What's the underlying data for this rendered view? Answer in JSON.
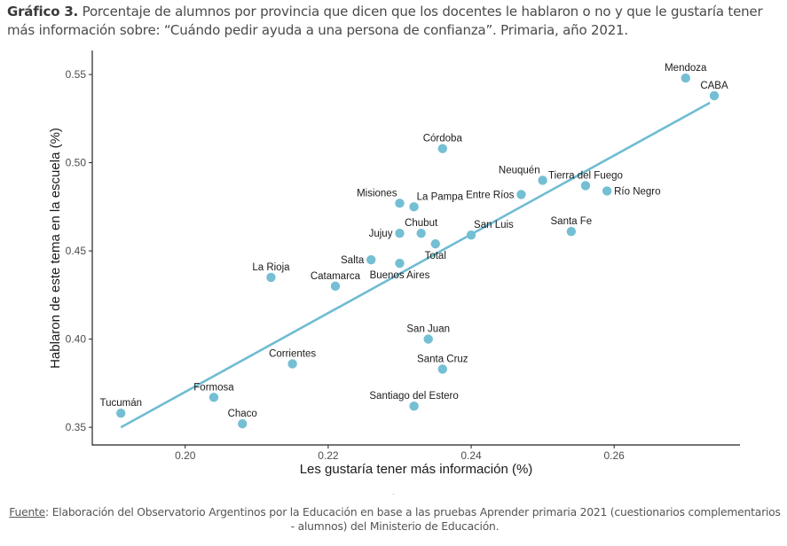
{
  "title": {
    "prefix": "Gráfico 3.",
    "text": " Porcentaje de alumnos por provincia que dicen que los docentes le hablaron o no y que le gustaría tener más información sobre: “Cuándo pedir ayuda a una persona de confianza”. Primaria, año 2021."
  },
  "source": {
    "label": "Fuente",
    "text": ":  Elaboración del Observatorio Argentinos por la Educación en base a las pruebas Aprender primaria 2021 (cuestionarios complementarios - alumnos) del Ministerio de Educación."
  },
  "colors": {
    "point": "#74bfd3",
    "line": "#6fbcd2",
    "axis": "#222222"
  },
  "chart_data": {
    "type": "scatter",
    "title": "Gráfico 3. Porcentaje de alumnos por provincia que dicen que los docentes le hablaron o no y que le gustaría tener más información sobre: “Cuándo pedir ayuda a una persona de confianza”. Primaria, año 2021.",
    "xlabel": "Les gustaría tener más información (%)",
    "ylabel": "Hablaron de este tema en la escuela (%)",
    "xlim": [
      0.187,
      0.2776
    ],
    "ylim": [
      0.34,
      0.5636
    ],
    "xticks": [
      0.2,
      0.22,
      0.24,
      0.26
    ],
    "xtick_labels": [
      "0.20",
      "0.22",
      "0.24",
      "0.26"
    ],
    "yticks": [
      0.35,
      0.4,
      0.45,
      0.5,
      0.55
    ],
    "ytick_labels": [
      "0.35",
      "0.40",
      "0.45",
      "0.50",
      "0.55"
    ],
    "grid": false,
    "points": [
      {
        "label": "Mendoza",
        "x": 0.27,
        "y": 0.548
      },
      {
        "label": "CABA",
        "x": 0.274,
        "y": 0.538
      },
      {
        "label": "Córdoba",
        "x": 0.236,
        "y": 0.508
      },
      {
        "label": "Neuquén",
        "x": 0.25,
        "y": 0.49
      },
      {
        "label": "Tierra del Fuego",
        "x": 0.256,
        "y": 0.487
      },
      {
        "label": "Río Negro",
        "x": 0.259,
        "y": 0.484
      },
      {
        "label": "Entre Ríos",
        "x": 0.247,
        "y": 0.482
      },
      {
        "label": "Misiones",
        "x": 0.23,
        "y": 0.477
      },
      {
        "label": "La Pampa",
        "x": 0.232,
        "y": 0.475
      },
      {
        "label": "Jujuy",
        "x": 0.23,
        "y": 0.46
      },
      {
        "label": "Chubut",
        "x": 0.233,
        "y": 0.46
      },
      {
        "label": "Total",
        "x": 0.235,
        "y": 0.454
      },
      {
        "label": "San Luis",
        "x": 0.24,
        "y": 0.459
      },
      {
        "label": "Santa Fe",
        "x": 0.254,
        "y": 0.461
      },
      {
        "label": "Salta",
        "x": 0.226,
        "y": 0.445
      },
      {
        "label": "Buenos Aires",
        "x": 0.23,
        "y": 0.443
      },
      {
        "label": "La Rioja",
        "x": 0.212,
        "y": 0.435
      },
      {
        "label": "Catamarca",
        "x": 0.221,
        "y": 0.43
      },
      {
        "label": "San Juan",
        "x": 0.234,
        "y": 0.4
      },
      {
        "label": "Corrientes",
        "x": 0.215,
        "y": 0.386
      },
      {
        "label": "Santa Cruz",
        "x": 0.236,
        "y": 0.383
      },
      {
        "label": "Santiago del Estero",
        "x": 0.232,
        "y": 0.362
      },
      {
        "label": "Formosa",
        "x": 0.204,
        "y": 0.367
      },
      {
        "label": "Tucumán",
        "x": 0.191,
        "y": 0.358
      },
      {
        "label": "Chaco",
        "x": 0.208,
        "y": 0.352
      }
    ],
    "trend_line": {
      "x": [
        0.191,
        0.2734
      ],
      "y": [
        0.35,
        0.534
      ]
    },
    "legend": "none"
  }
}
